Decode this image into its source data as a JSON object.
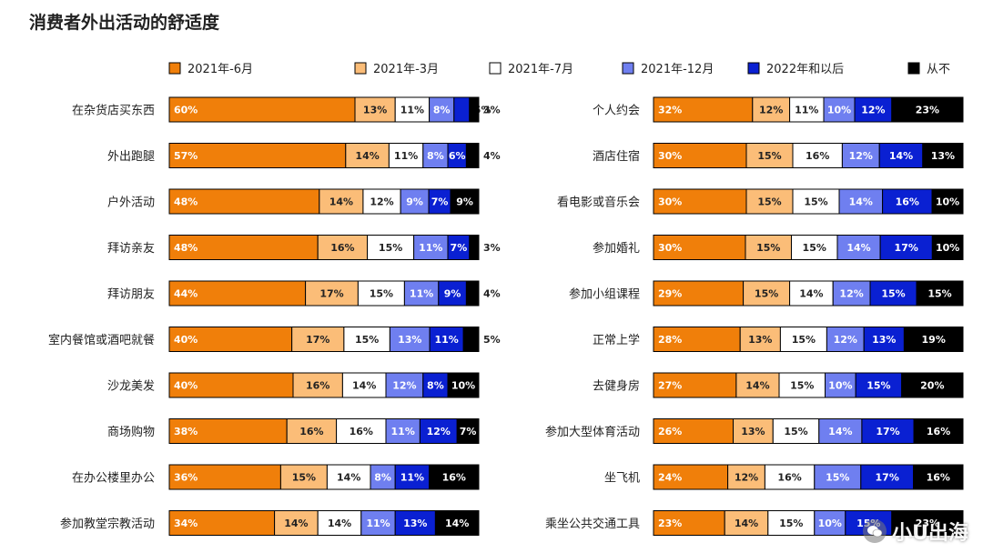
{
  "chart_data": {
    "type": "bar",
    "orientation": "horizontal",
    "stacked": true,
    "percent_labels": true,
    "title": "消费者外出活动的舒适度",
    "legend_position": "top",
    "series": [
      {
        "name": "2021年-6月",
        "color": "#f07f0a",
        "label_color": "#ffffff"
      },
      {
        "name": "2021年-3月",
        "color": "#fbbd78",
        "label_color": "#222222"
      },
      {
        "name": "2021年-7月",
        "color": "#ffffff",
        "label_color": "#222222"
      },
      {
        "name": "2021年-12月",
        "color": "#6f7ff0",
        "label_color": "#ffffff"
      },
      {
        "name": "2022年和以后",
        "color": "#0a20d2",
        "label_color": "#ffffff"
      },
      {
        "name": "从不",
        "color": "#000000",
        "label_color": "#ffffff"
      }
    ],
    "panels": [
      {
        "categories": [
          "在杂货店买东西",
          "外出跑腿",
          "户外活动",
          "拜访亲友",
          "拜访朋友",
          "室内餐馆或酒吧就餐",
          "沙龙美发",
          "商场购物",
          "在办公楼里办公",
          "参加教堂宗教活动"
        ],
        "values": [
          [
            60,
            13,
            11,
            8,
            5,
            3
          ],
          [
            57,
            14,
            11,
            8,
            6,
            4
          ],
          [
            48,
            14,
            12,
            9,
            7,
            9
          ],
          [
            48,
            16,
            15,
            11,
            7,
            3
          ],
          [
            44,
            17,
            15,
            11,
            9,
            4
          ],
          [
            40,
            17,
            15,
            13,
            11,
            5
          ],
          [
            40,
            16,
            14,
            12,
            8,
            10
          ],
          [
            38,
            16,
            16,
            11,
            12,
            7
          ],
          [
            36,
            15,
            14,
            8,
            11,
            16
          ],
          [
            34,
            14,
            14,
            11,
            13,
            14
          ]
        ]
      },
      {
        "categories": [
          "个人约会",
          "酒店住宿",
          "看电影或音乐会",
          "参加婚礼",
          "参加小组课程",
          "正常上学",
          "去健身房",
          "参加大型体育活动",
          "坐飞机",
          "乘坐公共交通工具"
        ],
        "values": [
          [
            32,
            12,
            11,
            10,
            12,
            23
          ],
          [
            30,
            15,
            16,
            12,
            14,
            13
          ],
          [
            30,
            15,
            15,
            14,
            16,
            10
          ],
          [
            30,
            15,
            15,
            14,
            17,
            10
          ],
          [
            29,
            15,
            14,
            12,
            15,
            15
          ],
          [
            28,
            13,
            15,
            12,
            13,
            19
          ],
          [
            27,
            14,
            15,
            10,
            15,
            20
          ],
          [
            26,
            13,
            15,
            14,
            17,
            16
          ],
          [
            24,
            12,
            16,
            15,
            17,
            16
          ],
          [
            23,
            14,
            15,
            10,
            15,
            23
          ]
        ]
      }
    ]
  },
  "watermark": {
    "text": "小U出海",
    "icon": "wechat-icon"
  }
}
